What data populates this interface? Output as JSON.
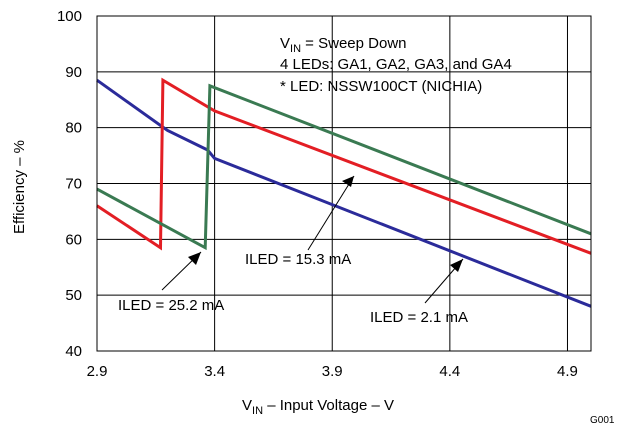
{
  "chart_data": {
    "type": "line",
    "xlabel": {
      "prefix": "V",
      "sub": "IN",
      "suffix": " – Input Voltage – V"
    },
    "ylabel": "Efficiency – %",
    "xlim": [
      2.9,
      5.0
    ],
    "ylim": [
      40,
      100
    ],
    "xticks": [
      "2.9",
      "3.4",
      "3.9",
      "4.4",
      "4.9"
    ],
    "xtick_values": [
      2.9,
      3.4,
      3.9,
      4.4,
      4.9
    ],
    "yticks": [
      "40",
      "50",
      "60",
      "70",
      "80",
      "90",
      "100"
    ],
    "ytick_values": [
      40,
      50,
      60,
      70,
      80,
      90,
      100
    ],
    "grid": true,
    "notes": [
      {
        "prefix": "V",
        "sub": "IN",
        "suffix": " = Sweep Down"
      },
      {
        "prefix": "4 LEDs: GA1, GA2, GA3, and GA4",
        "sub": "",
        "suffix": ""
      },
      {
        "prefix": "* LED: NSSW100CT (NICHIA)",
        "sub": "",
        "suffix": ""
      }
    ],
    "series": [
      {
        "color": "#2b2b9a",
        "x": [
          2.9,
          3.2,
          3.37,
          3.4,
          5.0
        ],
        "y": [
          88.5,
          79.5,
          76,
          74.5,
          48
        ]
      },
      {
        "color": "#e31e24",
        "x": [
          2.9,
          3.17,
          3.18,
          3.4,
          5.0
        ],
        "y": [
          66,
          58.5,
          88.5,
          83,
          57.5
        ]
      },
      {
        "color": "#3a7a52",
        "x": [
          2.9,
          3.36,
          3.38,
          5.0
        ],
        "y": [
          69,
          58.5,
          87.5,
          61
        ]
      }
    ],
    "annotations": [
      {
        "text": "ILED = 15.3 mA",
        "series": 1
      },
      {
        "text": "ILED = 25.2 mA",
        "series": 2
      },
      {
        "text": "ILED = 2.1 mA",
        "series": 0
      }
    ],
    "figure_id": "G001"
  }
}
